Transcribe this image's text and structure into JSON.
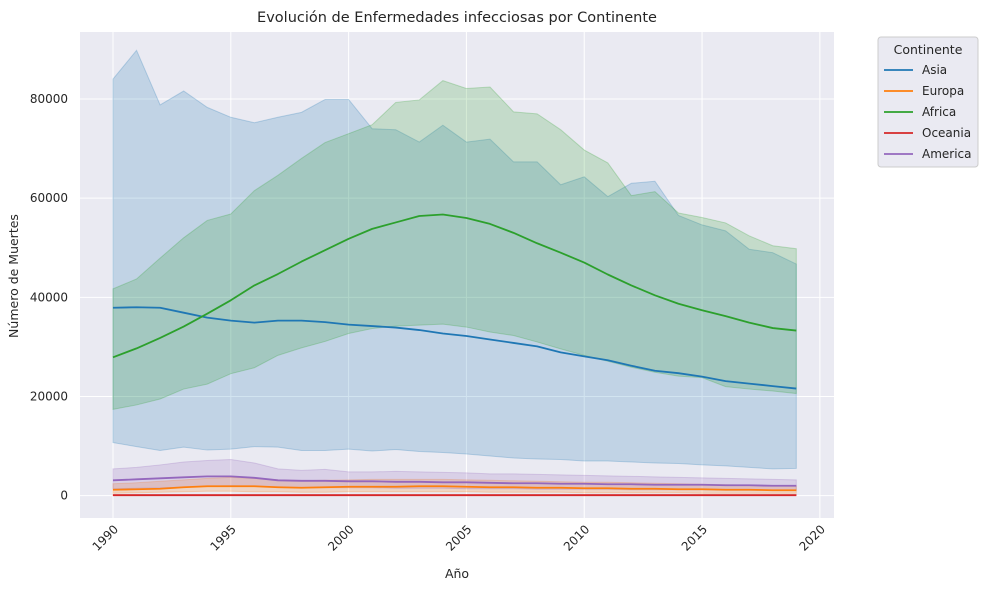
{
  "chart_data": {
    "type": "line",
    "title": "Evolución de Enfermedades infecciosas por Continente",
    "xlabel": "Año",
    "ylabel": "Número de Muertes",
    "xlim": [
      1988.6,
      2020.6
    ],
    "ylim": [
      -4500,
      93500
    ],
    "xticks": [
      1990,
      1995,
      2000,
      2005,
      2010,
      2015,
      2020
    ],
    "yticks": [
      0,
      20000,
      40000,
      60000,
      80000
    ],
    "ytick_labels": [
      "0",
      "20000",
      "40000",
      "60000",
      "80000"
    ],
    "grid": true,
    "legend": {
      "title": "Continente",
      "placement": "outside-top-right"
    },
    "x": [
      1990,
      1991,
      1992,
      1993,
      1994,
      1995,
      1996,
      1997,
      1998,
      1999,
      2000,
      2001,
      2002,
      2003,
      2004,
      2005,
      2006,
      2007,
      2008,
      2009,
      2010,
      2011,
      2012,
      2013,
      2014,
      2015,
      2016,
      2017,
      2018,
      2019
    ],
    "series": [
      {
        "name": "Asia",
        "color": "#1f77b4",
        "values": [
          37900,
          38000,
          37900,
          36900,
          35900,
          35300,
          34900,
          35300,
          35300,
          35000,
          34500,
          34200,
          33900,
          33400,
          32700,
          32200,
          31500,
          30800,
          30100,
          28900,
          28100,
          27300,
          26200,
          25200,
          24700,
          24000,
          23100,
          22600,
          22100,
          21600
        ],
        "upper": [
          84000,
          89800,
          78800,
          81600,
          78300,
          76300,
          75200,
          76300,
          77300,
          79900,
          79900,
          74000,
          73800,
          71300,
          74700,
          71300,
          71900,
          67300,
          67300,
          62700,
          64300,
          60300,
          63000,
          63400,
          56500,
          54600,
          53400,
          49700,
          49000,
          46700
        ],
        "lower": [
          10700,
          9900,
          9100,
          9800,
          9200,
          9400,
          9900,
          9800,
          9100,
          9100,
          9400,
          9000,
          9300,
          8900,
          8700,
          8400,
          8000,
          7600,
          7400,
          7300,
          7000,
          7000,
          6800,
          6600,
          6500,
          6200,
          6000,
          5700,
          5400,
          5500
        ]
      },
      {
        "name": "Europa",
        "color": "#ff7f0e",
        "values": [
          1200,
          1300,
          1400,
          1700,
          1900,
          1900,
          1900,
          1700,
          1600,
          1700,
          1800,
          1800,
          1800,
          1900,
          1900,
          1800,
          1700,
          1700,
          1600,
          1600,
          1500,
          1500,
          1400,
          1400,
          1300,
          1300,
          1200,
          1200,
          1100,
          1100
        ],
        "upper": [
          2400,
          2600,
          2900,
          3200,
          3500,
          3700,
          3500,
          3200,
          3000,
          3100,
          3200,
          3300,
          3300,
          3300,
          3300,
          3200,
          3100,
          3000,
          2900,
          2800,
          2700,
          2700,
          2600,
          2500,
          2400,
          2300,
          2200,
          2100,
          2000,
          1900
        ],
        "lower": [
          500,
          600,
          700,
          800,
          900,
          900,
          800,
          800,
          700,
          700,
          800,
          800,
          800,
          800,
          800,
          800,
          700,
          700,
          700,
          700,
          600,
          600,
          600,
          600,
          600,
          500,
          500,
          500,
          500,
          500
        ]
      },
      {
        "name": "Africa",
        "color": "#2ca02c",
        "values": [
          27900,
          29700,
          31800,
          34100,
          36700,
          39400,
          42400,
          44700,
          47200,
          49500,
          51800,
          53800,
          55100,
          56400,
          56700,
          56000,
          54800,
          53000,
          50900,
          49000,
          47000,
          44600,
          42400,
          40400,
          38700,
          37400,
          36200,
          34900,
          33800,
          33300
        ],
        "upper": [
          41700,
          43700,
          47900,
          52000,
          55500,
          56800,
          61500,
          64600,
          68000,
          71200,
          73000,
          74800,
          79300,
          79800,
          83700,
          82100,
          82400,
          77400,
          77000,
          73800,
          69700,
          67100,
          60500,
          61300,
          57000,
          56100,
          55000,
          52400,
          50400,
          49800
        ],
        "lower": [
          17400,
          18300,
          19500,
          21500,
          22500,
          24600,
          25800,
          28300,
          29800,
          31100,
          32700,
          33700,
          34200,
          34400,
          34600,
          34000,
          33000,
          32300,
          31000,
          29600,
          28300,
          27100,
          25900,
          24900,
          24100,
          23800,
          22000,
          21500,
          21100,
          20600
        ]
      },
      {
        "name": "Oceania",
        "color": "#d62728",
        "values": [
          100,
          100,
          100,
          100,
          100,
          100,
          100,
          100,
          100,
          100,
          100,
          100,
          100,
          100,
          100,
          100,
          100,
          100,
          100,
          100,
          100,
          100,
          100,
          100,
          100,
          100,
          100,
          100,
          100,
          100
        ],
        "upper": [
          250,
          250,
          250,
          250,
          250,
          250,
          250,
          250,
          250,
          250,
          250,
          250,
          250,
          250,
          250,
          250,
          250,
          250,
          250,
          250,
          250,
          250,
          250,
          250,
          250,
          250,
          250,
          250,
          250,
          250
        ],
        "lower": [
          30,
          30,
          30,
          30,
          30,
          30,
          30,
          30,
          30,
          30,
          30,
          30,
          30,
          30,
          30,
          30,
          30,
          30,
          30,
          30,
          30,
          30,
          30,
          30,
          30,
          30,
          30,
          30,
          30,
          30
        ]
      },
      {
        "name": "America",
        "color": "#9467bd",
        "values": [
          3100,
          3300,
          3500,
          3700,
          3900,
          3900,
          3600,
          3100,
          3000,
          3000,
          2900,
          2900,
          2800,
          2800,
          2700,
          2700,
          2600,
          2500,
          2500,
          2400,
          2400,
          2300,
          2300,
          2200,
          2200,
          2200,
          2100,
          2100,
          2000,
          2000
        ],
        "upper": [
          5400,
          5700,
          6200,
          6800,
          7100,
          7300,
          6600,
          5400,
          5100,
          5300,
          4800,
          4800,
          4900,
          4800,
          4700,
          4600,
          4400,
          4400,
          4300,
          4200,
          4100,
          4000,
          3900,
          3800,
          3700,
          3600,
          3500,
          3400,
          3300,
          3200
        ],
        "lower": [
          1400,
          1500,
          1600,
          1700,
          1900,
          2000,
          1900,
          1700,
          1600,
          1600,
          1600,
          1600,
          1500,
          1500,
          1500,
          1400,
          1400,
          1400,
          1300,
          1300,
          1300,
          1300,
          1200,
          1200,
          1200,
          1200,
          1100,
          1100,
          1100,
          1100
        ]
      }
    ]
  }
}
